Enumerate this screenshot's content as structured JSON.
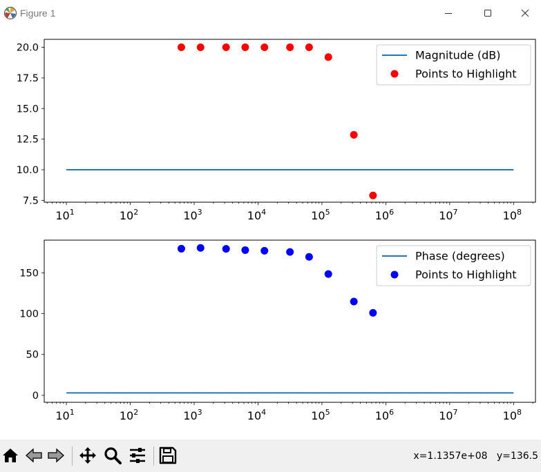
{
  "window": {
    "title": "Figure 1"
  },
  "status": {
    "coordinates": "x=1.1357e+08   y=136.5"
  },
  "icons": {
    "app": "matplotlib-icon",
    "minimize": "minimize-icon",
    "maximize": "maximize-icon",
    "close": "close-icon",
    "home": "home-icon",
    "back": "back-arrow-icon",
    "forward": "forward-arrow-icon",
    "pan": "pan-move-icon",
    "zoom": "zoom-magnifier-icon",
    "configure": "configure-subplots-icon",
    "save": "save-floppy-icon"
  },
  "colors": {
    "line": "#1f77b4",
    "magnitude_points": "#ff0000",
    "phase_points": "#0000ff"
  },
  "chart_data": [
    {
      "type": "scatter",
      "x_scale": "log",
      "xlim": [
        4.5,
        220000000
      ],
      "ylim": [
        7.35,
        20.65
      ],
      "x_ticks": [
        10,
        100,
        1000,
        10000,
        100000,
        1000000,
        10000000,
        100000000
      ],
      "x_tick_labels": [
        {
          "b": "10",
          "e": "1"
        },
        {
          "b": "10",
          "e": "2"
        },
        {
          "b": "10",
          "e": "3"
        },
        {
          "b": "10",
          "e": "4"
        },
        {
          "b": "10",
          "e": "5"
        },
        {
          "b": "10",
          "e": "6"
        },
        {
          "b": "10",
          "e": "7"
        },
        {
          "b": "10",
          "e": "8"
        }
      ],
      "y_ticks": [
        7.5,
        10,
        12.5,
        15,
        17.5,
        20
      ],
      "y_tick_labels": [
        "7.5",
        "10.0",
        "12.5",
        "15.0",
        "17.5",
        "20.0"
      ],
      "legend_position": "top-right",
      "series": [
        {
          "name": "Magnitude (dB)",
          "kind": "line",
          "color": "#1f77b4",
          "x": [
            10,
            100000000
          ],
          "y": [
            10,
            10
          ]
        },
        {
          "name": "Points to Highlight",
          "kind": "scatter",
          "color": "#ff0000",
          "x": [
            630,
            1260,
            3160,
            6300,
            12600,
            31600,
            63000,
            126000,
            316000,
            630000
          ],
          "y": [
            20.0,
            20.0,
            20.0,
            20.0,
            20.0,
            20.0,
            20.0,
            19.2,
            12.85,
            7.9
          ]
        }
      ]
    },
    {
      "type": "scatter",
      "x_scale": "log",
      "xlim": [
        4.5,
        220000000
      ],
      "ylim": [
        -8.5,
        190
      ],
      "x_ticks": [
        10,
        100,
        1000,
        10000,
        100000,
        1000000,
        10000000,
        100000000
      ],
      "x_tick_labels": [
        {
          "b": "10",
          "e": "1"
        },
        {
          "b": "10",
          "e": "2"
        },
        {
          "b": "10",
          "e": "3"
        },
        {
          "b": "10",
          "e": "4"
        },
        {
          "b": "10",
          "e": "5"
        },
        {
          "b": "10",
          "e": "6"
        },
        {
          "b": "10",
          "e": "7"
        },
        {
          "b": "10",
          "e": "8"
        }
      ],
      "y_ticks": [
        0,
        50,
        100,
        150
      ],
      "y_tick_labels": [
        "0",
        "50",
        "100",
        "150"
      ],
      "legend_position": "top-right",
      "series": [
        {
          "name": "Phase (degrees)",
          "kind": "line",
          "color": "#1f77b4",
          "x": [
            10,
            100000000
          ],
          "y": [
            3,
            3
          ]
        },
        {
          "name": "Points to Highlight",
          "kind": "scatter",
          "color": "#0000ff",
          "x": [
            630,
            1260,
            3160,
            6300,
            12600,
            31600,
            63000,
            126000,
            316000,
            630000
          ],
          "y": [
            179.5,
            180.5,
            179.3,
            177.8,
            177.0,
            175.5,
            169.5,
            148.5,
            114.8,
            101.0
          ]
        }
      ]
    }
  ]
}
